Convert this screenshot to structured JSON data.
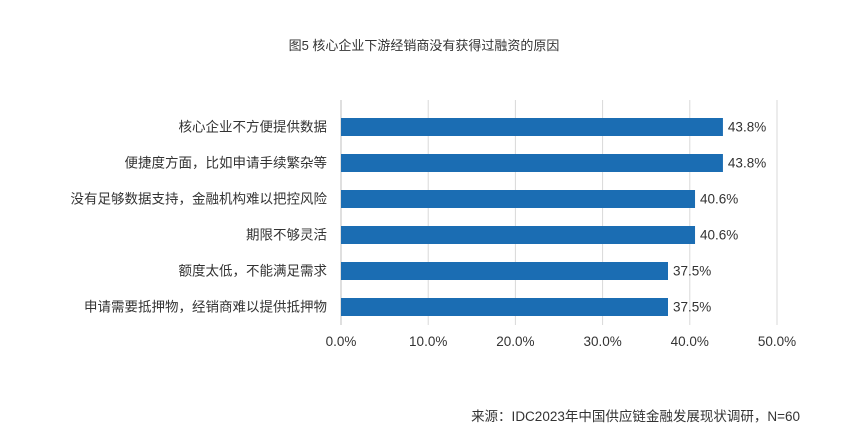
{
  "source": "来源：IDC2023年中国供应链金融发展现状调研，N=60",
  "chart_data": {
    "type": "bar",
    "orientation": "horizontal",
    "title": "图5 核心企业下游经销商没有获得过融资的原因",
    "categories": [
      "核心企业不方便提供数据",
      "便捷度方面，比如申请手续繁杂等",
      "没有足够数据支持，金融机构难以把控风险",
      "期限不够灵活",
      "额度太低，不能满足需求",
      "申请需要抵押物，经销商难以提供抵押物"
    ],
    "values": [
      43.8,
      43.8,
      40.6,
      40.6,
      37.5,
      37.5
    ],
    "value_labels": [
      "43.8%",
      "43.8%",
      "40.6%",
      "40.6%",
      "37.5%",
      "37.5%"
    ],
    "xlim": [
      0,
      50
    ],
    "xticks": [
      0,
      10,
      20,
      30,
      40,
      50
    ],
    "xtick_labels": [
      "0.0%",
      "10.0%",
      "20.0%",
      "30.0%",
      "40.0%",
      "50.0%"
    ],
    "xlabel": "",
    "ylabel": "",
    "grid": true,
    "bar_color": "#1b6db3",
    "grid_color": "#d9d9d9",
    "axis_color": "#bfbfbf",
    "text_color": "#333333"
  }
}
